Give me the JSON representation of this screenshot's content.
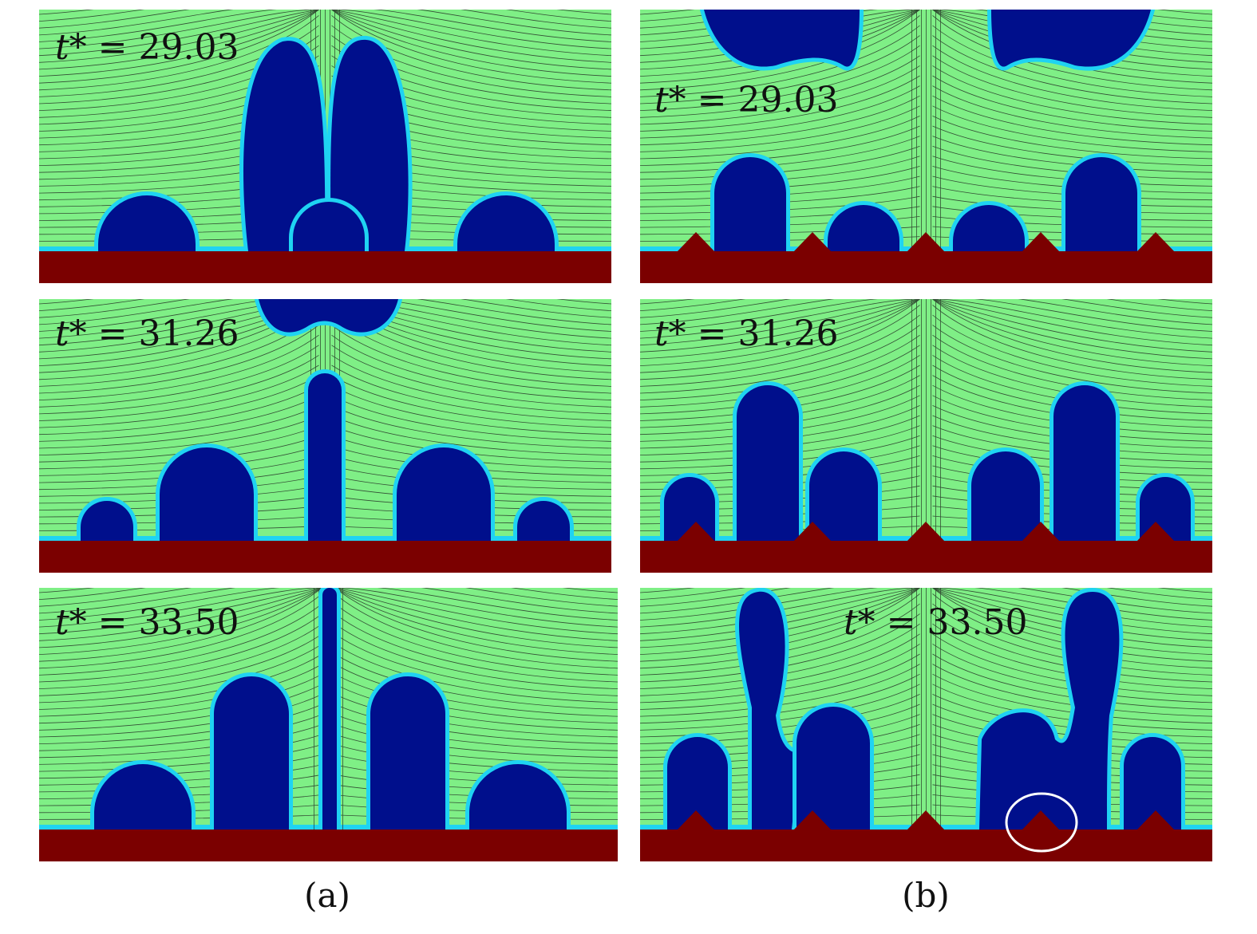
{
  "figure": {
    "colors": {
      "fluid": "#7fef86",
      "bubble": "#000f8c",
      "interface": "#1fd3f2",
      "wall": "#7b0000",
      "streamline": "#1a1a1a",
      "highlight_circle": "#ffffff"
    },
    "columns": [
      {
        "caption": "(a)",
        "panels": [
          {
            "label_var": "t*",
            "label_eq": " = 29.03"
          },
          {
            "label_var": "t*",
            "label_eq": " = 31.26"
          },
          {
            "label_var": "t*",
            "label_eq": " = 33.50"
          }
        ]
      },
      {
        "caption": "(b)",
        "panels": [
          {
            "label_var": "t*",
            "label_eq": " = 29.03"
          },
          {
            "label_var": "t*",
            "label_eq": " = 31.26"
          },
          {
            "label_var": "t*",
            "label_eq": " = 33.50"
          }
        ]
      }
    ]
  }
}
